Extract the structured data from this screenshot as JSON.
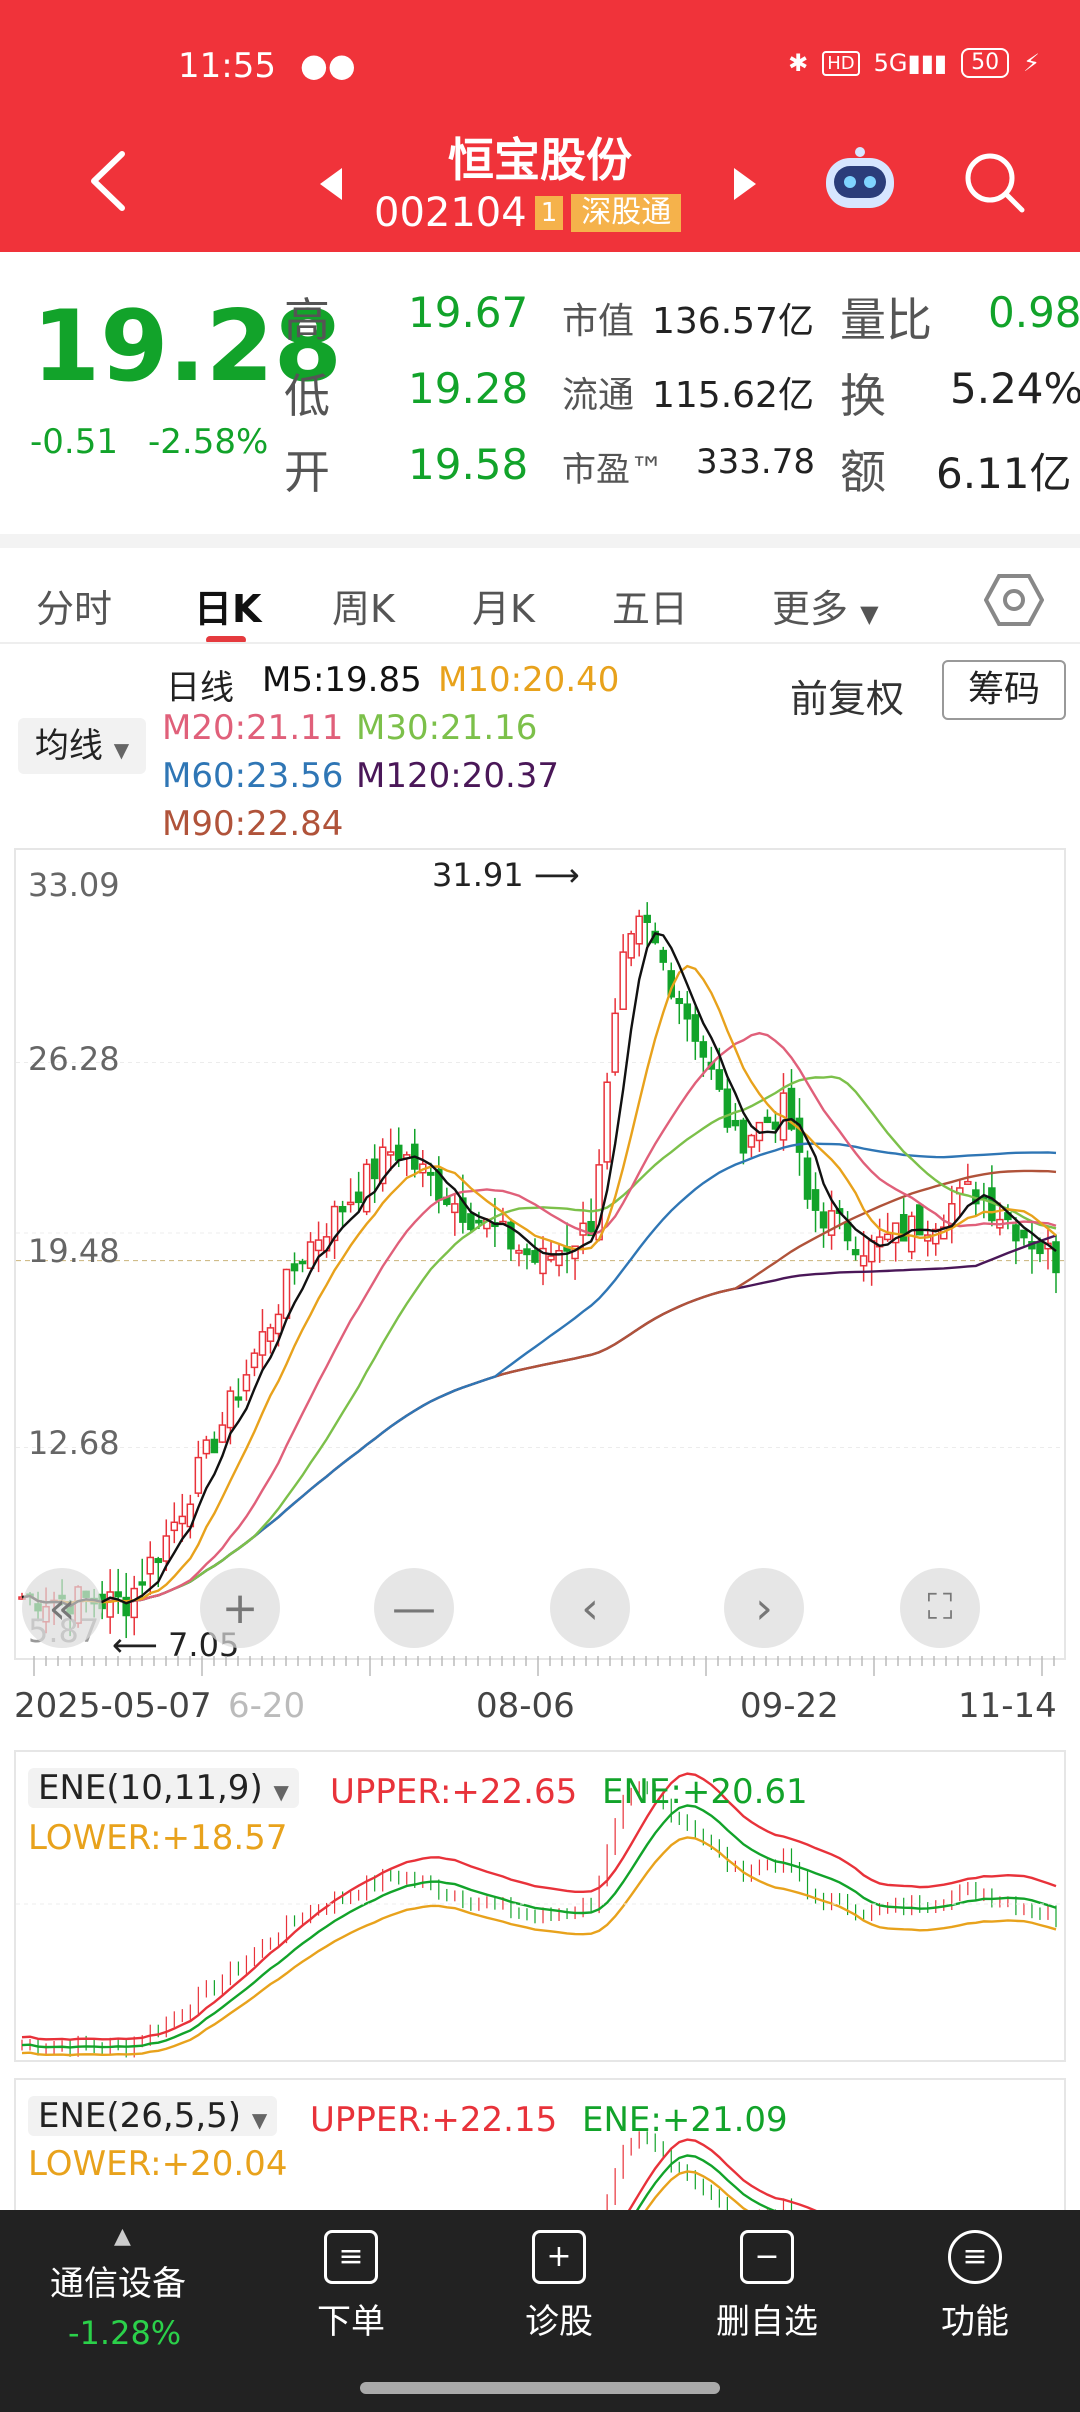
{
  "status": {
    "time": "11:55",
    "battery": "50"
  },
  "header": {
    "name": "恒宝股份",
    "code": "002104",
    "badge": "1",
    "market": "深股通"
  },
  "quote": {
    "price": "19.28",
    "change": "-0.51",
    "change_pct": "-2.58%",
    "high_label": "高",
    "high": "19.67",
    "low_label": "低",
    "low": "19.28",
    "open_label": "开",
    "open": "19.58",
    "mcap_label": "市值",
    "mcap": "136.57亿",
    "float_label": "流通",
    "float": "115.62亿",
    "pe_label": "市盈™",
    "pe": "333.78",
    "vol_ratio_label": "量比",
    "vol_ratio": "0.98",
    "turnover_label": "换",
    "turnover": "5.24%",
    "amount_label": "额",
    "amount": "6.11亿"
  },
  "tabs": [
    "分时",
    "日K",
    "周K",
    "月K",
    "五日",
    "更多"
  ],
  "legend": {
    "selector": "均线",
    "daily": "日线",
    "m5": "M5:19.85",
    "m10": "M10:20.40",
    "m20": "M20:21.11",
    "m30": "M30:21.16",
    "m60": "M60:23.56",
    "m120": "M120:20.37",
    "m90": "M90:22.84",
    "adjust": "前复权",
    "chips": "筹码"
  },
  "colors": {
    "m5": "#111111",
    "m10": "#e8a21c",
    "m20": "#e0607a",
    "m30": "#7cc04a",
    "m60": "#2f76b5",
    "m120": "#4a1758",
    "m90": "#b0533a",
    "up": "#e8323a",
    "down": "#12a32a"
  },
  "chart_data": {
    "type": "line",
    "title": "",
    "y_ticks": [
      "33.09",
      "26.28",
      "19.48",
      "12.68",
      "5.87"
    ],
    "ylim": [
      5.87,
      33.09
    ],
    "x_labels": [
      "2025-05-07",
      "6-20",
      "08-06",
      "09-22",
      "11-14"
    ],
    "max_marker": "31.91",
    "min_marker": "7.05",
    "last_close": 19.28
  },
  "indicator1": {
    "name": "ENE(10,11,9)",
    "upper": "UPPER:+22.65",
    "ene": "ENE:+20.61",
    "lower": "LOWER:+18.57"
  },
  "indicator2": {
    "name": "ENE(26,5,5)",
    "upper": "UPPER:+22.15",
    "ene": "ENE:+21.09",
    "lower": "LOWER:+20.04"
  },
  "bottom_nav": {
    "sector": "通信设备",
    "sector_pct": "-1.28%",
    "items": [
      "下单",
      "诊股",
      "删自选",
      "功能"
    ]
  }
}
